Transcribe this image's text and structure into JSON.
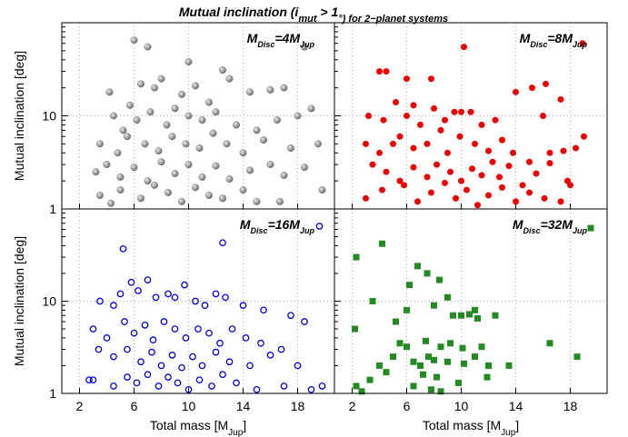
{
  "chart_data": [
    {
      "type": "scatter",
      "title": [
        "Mutual inclination (i",
        "mut",
        " > 1",
        "°) for 2−planet systems"
      ],
      "ylabel": "Mutual inclination [deg]",
      "annotation": [
        "M",
        "Disc",
        "=4M",
        "Jup"
      ],
      "color": "#8c8c8c",
      "marker": "sphere",
      "log_y": true,
      "grid": true,
      "xlim": [
        0.7,
        20.7
      ],
      "ylim": [
        1,
        100
      ],
      "xticks": [
        2,
        6,
        10,
        14,
        18
      ],
      "yticks": [
        1,
        10
      ],
      "show_xticklabels": false,
      "show_yticklabels": true,
      "x": [
        6,
        7,
        10,
        12.5,
        18.5,
        4.2,
        5.7,
        6.5,
        7.5,
        8,
        9.5,
        10.5,
        11.5,
        13,
        14.5,
        16,
        17,
        19,
        4.5,
        5.2,
        6.2,
        7.2,
        8.4,
        9,
        10,
        11,
        12,
        13.5,
        15,
        16.5,
        18,
        3.5,
        4.8,
        5.5,
        6.8,
        7.8,
        8.8,
        9.8,
        10.8,
        11.8,
        12.8,
        14,
        15.5,
        17.5,
        19.5,
        3.2,
        4,
        5,
        6,
        7,
        8,
        9,
        10,
        11,
        12,
        13,
        14.5,
        16,
        17,
        18.5,
        3.5,
        5,
        6.5,
        7.5,
        8.5,
        9.5,
        10.5,
        11.5,
        12.5,
        14,
        15,
        19.8,
        16.7,
        4.3
      ],
      "values": [
        65,
        55,
        38,
        31,
        55,
        18,
        13,
        22,
        20,
        25,
        17,
        21,
        14,
        25,
        18,
        19,
        20,
        12,
        10,
        7,
        9,
        11,
        8,
        12,
        10,
        9,
        11,
        8,
        7,
        9,
        10,
        5,
        4,
        6,
        5,
        4.2,
        6,
        5,
        4.5,
        6.5,
        5,
        4,
        5.5,
        4.5,
        5,
        2.5,
        3,
        2.2,
        2.8,
        2,
        3.2,
        2.4,
        3,
        2.2,
        2.9,
        2.1,
        2.6,
        3,
        2.3,
        2.8,
        1.4,
        1.6,
        1.3,
        1.8,
        1.5,
        1.2,
        1.7,
        1.4,
        1.3,
        1.6,
        1.2,
        1.6,
        1.2,
        1.15
      ]
    },
    {
      "type": "scatter",
      "annotation": [
        "M",
        "Disc",
        "=8M",
        "Jup"
      ],
      "color": "#ee0000",
      "marker": "dot",
      "log_y": true,
      "grid": true,
      "xlim": [
        0.7,
        20.7
      ],
      "ylim": [
        1,
        100
      ],
      "xticks": [
        2,
        6,
        10,
        14,
        18
      ],
      "yticks": [
        1,
        10
      ],
      "show_xticklabels": false,
      "show_yticklabels": false,
      "x": [
        18.9,
        4,
        4.5,
        6,
        7.8,
        10.2,
        14,
        15.2,
        16.2,
        17.3,
        3.2,
        4.3,
        5.2,
        6,
        6.5,
        7,
        8,
        8.8,
        9.5,
        10,
        10.7,
        11.5,
        12.5,
        16,
        19,
        3,
        4,
        5,
        5.5,
        6.5,
        7.5,
        8.5,
        9,
        9.9,
        11,
        12,
        13,
        13.8,
        15,
        16.5,
        17.5,
        18.4,
        3.5,
        4.5,
        5.5,
        6.5,
        7.5,
        8.2,
        9.2,
        10,
        10.8,
        11.5,
        12.3,
        12.8,
        13.5,
        14.5,
        15.5,
        16.5,
        17.8,
        3,
        4.2,
        5.8,
        6.8,
        7.8,
        8.8,
        9.6,
        10.4,
        11.2,
        12,
        13,
        14,
        15,
        16.1,
        17.3,
        18
      ],
      "values": [
        60,
        30,
        30,
        25,
        25,
        55,
        18,
        20,
        22,
        15,
        10,
        9,
        14,
        10,
        13,
        8,
        12,
        9,
        11,
        11,
        11,
        8,
        9,
        10,
        6,
        5,
        4,
        5,
        6,
        4.5,
        5,
        7,
        4,
        6,
        5,
        4.2,
        5.5,
        4,
        3.2,
        4,
        4.2,
        4.5,
        3,
        2.5,
        2,
        2.8,
        2.2,
        3,
        2.5,
        2,
        2.7,
        2.3,
        3.2,
        2.2,
        2.9,
        1.8,
        2.4,
        3.1,
        2,
        1.3,
        1.6,
        1.8,
        1.2,
        1.5,
        1.9,
        1.3,
        1.6,
        1.1,
        1.4,
        1.7,
        1.2,
        1.5,
        1.3,
        1.2,
        1.8
      ]
    },
    {
      "type": "scatter",
      "ylabel": "Mutual inclination [deg]",
      "xlabel": [
        "Total mass [M",
        "Jup",
        "]"
      ],
      "annotation": [
        "M",
        "Disc",
        "=16M",
        "Jup"
      ],
      "color": "#0000dd",
      "marker": "ring",
      "log_y": true,
      "grid": true,
      "xlim": [
        0.7,
        20.7
      ],
      "ylim": [
        1,
        100
      ],
      "xticks": [
        2,
        6,
        10,
        14,
        18
      ],
      "yticks": [
        1,
        10
      ],
      "show_xticklabels": true,
      "show_yticklabels": true,
      "x": [
        19.6,
        5.2,
        12.5,
        3.5,
        4.5,
        5,
        5.8,
        6.3,
        7,
        7.6,
        8.5,
        9,
        9.7,
        10.5,
        11.2,
        12,
        12.7,
        14,
        15.5,
        17.5,
        18.5,
        3,
        4,
        5.3,
        6,
        6.8,
        7.4,
        8.2,
        9,
        9.8,
        10.7,
        11.5,
        12.3,
        13.2,
        14.2,
        15.3,
        16.8,
        3.4,
        4.5,
        5.5,
        6.5,
        7.3,
        8,
        8.8,
        9.5,
        10.3,
        11,
        12,
        13,
        14.5,
        16,
        18,
        2.7,
        3,
        4.5,
        5.5,
        6.2,
        7,
        7.8,
        8.5,
        9.2,
        10,
        10.8,
        11.7,
        12.5,
        13.5,
        15,
        17,
        19,
        19.8
      ],
      "values": [
        65,
        37,
        43,
        10,
        9,
        12,
        16,
        13,
        17,
        11,
        12,
        11,
        15,
        10,
        9,
        12,
        11,
        9,
        8,
        7,
        6,
        5,
        4,
        6,
        4.5,
        5.5,
        3.8,
        6,
        5,
        4,
        5,
        4.5,
        3.5,
        5,
        4,
        3.5,
        3,
        3,
        2.5,
        3,
        2.2,
        2.8,
        2,
        2.6,
        1.9,
        2.5,
        2,
        2.8,
        2.2,
        2,
        2.6,
        2,
        1.4,
        1.4,
        1.2,
        1.5,
        1.3,
        1.6,
        1.2,
        1.5,
        1.3,
        1.1,
        1.4,
        1.2,
        1.6,
        1.3,
        1.1,
        1.2,
        1.1,
        1.2
      ]
    },
    {
      "type": "scatter",
      "xlabel": [
        "Total mass [M",
        "Jup",
        "]"
      ],
      "annotation": [
        "M",
        "Disc",
        "=32M",
        "Jup"
      ],
      "color": "#228b22",
      "marker": "square",
      "log_y": true,
      "grid": true,
      "xlim": [
        0.7,
        20.7
      ],
      "ylim": [
        1,
        100
      ],
      "xticks": [
        2,
        6,
        10,
        14,
        18
      ],
      "yticks": [
        1,
        10
      ],
      "show_xticklabels": true,
      "show_yticklabels": false,
      "x": [
        19.5,
        4.2,
        2.3,
        6.8,
        7.5,
        6.2,
        8.4,
        3.5,
        6,
        9,
        8,
        11,
        2.2,
        5.2,
        9.4,
        10,
        10.6,
        11.2,
        12.5,
        16.5,
        5.5,
        6,
        7.4,
        8.5,
        9.2,
        10.1,
        11.5,
        4,
        5,
        6.5,
        7,
        7.6,
        8,
        9,
        10.2,
        11,
        12,
        13.5,
        18.5,
        3.3,
        4.5,
        7.2,
        8.2,
        9.8,
        11.9,
        2.3,
        2.7,
        6.5,
        7.8,
        8.5
      ],
      "values": [
        62,
        42,
        30,
        24,
        20,
        15,
        17,
        10,
        8,
        11,
        9,
        8,
        5,
        6,
        7,
        7,
        7.2,
        6.5,
        7,
        3.5,
        3.5,
        3.2,
        3.7,
        3.2,
        3.5,
        3.1,
        3.2,
        2,
        2.5,
        2.2,
        2,
        2.5,
        2.3,
        2.2,
        2.1,
        2.5,
        2,
        2,
        2.5,
        1.4,
        1.7,
        1.6,
        1.5,
        1.3,
        1.5,
        1.2,
        1.05,
        1.2,
        1.1,
        1.05
      ]
    }
  ]
}
